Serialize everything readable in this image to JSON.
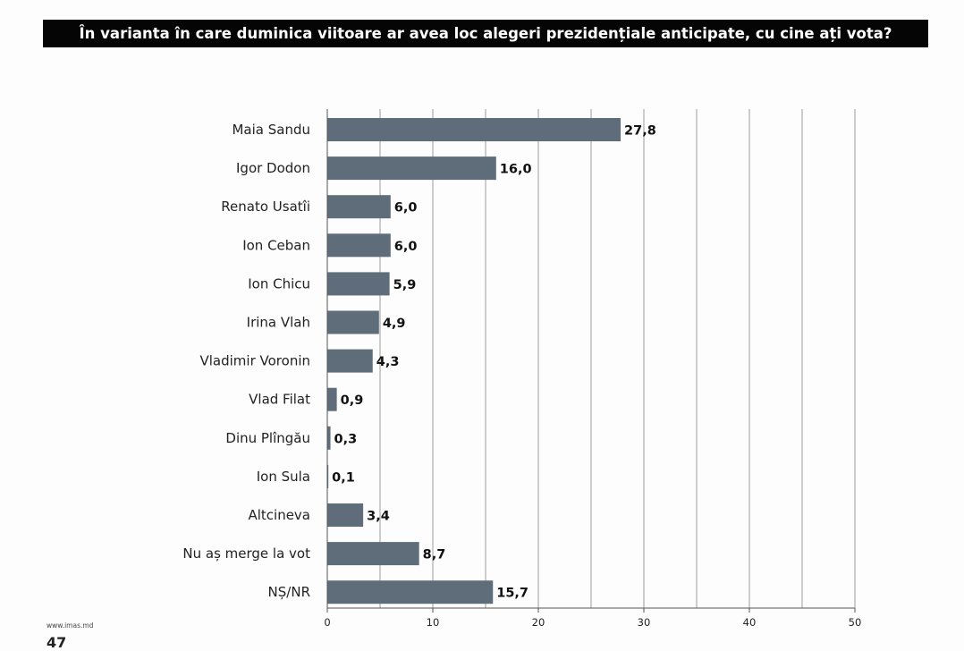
{
  "slide": {
    "title": "În varianta în care duminica viitoare ar avea loc alegeri prezidențiale anticipate, cu cine ați vota?",
    "footer_url": "www.imas.md",
    "page_number": "47"
  },
  "chart_data": {
    "type": "bar",
    "orientation": "horizontal",
    "title": "În varianta în care duminica viitoare ar avea loc alegeri prezidențiale anticipate, cu cine ați vota?",
    "categories": [
      "Maia Sandu",
      "Igor Dodon",
      "Renato Usatîi",
      "Ion Ceban",
      "Ion Chicu",
      "Irina Vlah",
      "Vladimir Voronin",
      "Vlad Filat",
      "Dinu Plîngău",
      "Ion Sula",
      "Altcineva",
      "Nu aș merge la vot",
      "NȘ/NR"
    ],
    "values": [
      27.8,
      16.0,
      6.0,
      6.0,
      5.9,
      4.9,
      4.3,
      0.9,
      0.3,
      0.1,
      3.4,
      8.7,
      15.7
    ],
    "value_labels": [
      "27,8",
      "16,0",
      "6,0",
      "6,0",
      "5,9",
      "4,9",
      "4,3",
      "0,9",
      "0,3",
      "0,1",
      "3,4",
      "8,7",
      "15,7"
    ],
    "xlim": [
      0,
      50
    ],
    "x_ticks": [
      0,
      10,
      20,
      30,
      40,
      50
    ],
    "grid": "vertical at every 5 units",
    "bar_color": "#5f6d7a",
    "legend": "none"
  }
}
